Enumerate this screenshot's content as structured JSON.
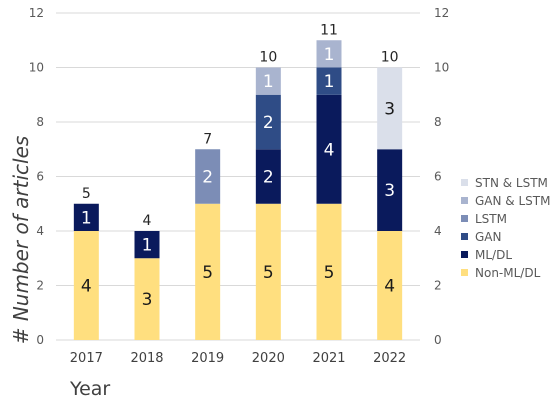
{
  "chart_data": {
    "type": "bar",
    "stacked": true,
    "xlabel": "Year",
    "ylabel": "# Number of articles",
    "ylim": [
      0,
      12
    ],
    "yticks": [
      0,
      2,
      4,
      6,
      8,
      10,
      12
    ],
    "secondary_y_axis": true,
    "grid": true,
    "legend_position": "right",
    "categories": [
      "2017",
      "2018",
      "2019",
      "2020",
      "2021",
      "2022"
    ],
    "totals": [
      5,
      4,
      7,
      10,
      11,
      10
    ],
    "series": [
      {
        "name": "Non-ML/DL",
        "color": "#FFDF7F",
        "values": [
          4,
          3,
          5,
          5,
          5,
          4
        ]
      },
      {
        "name": "ML/DL",
        "color": "#0A1A5C",
        "values": [
          1,
          1,
          0,
          2,
          4,
          3
        ]
      },
      {
        "name": "GAN",
        "color": "#2F4C86",
        "values": [
          0,
          0,
          0,
          2,
          1,
          0
        ]
      },
      {
        "name": "LSTM",
        "color": "#7C8DB6",
        "values": [
          0,
          0,
          2,
          0,
          0,
          0
        ]
      },
      {
        "name": "GAN & LSTM",
        "color": "#A9B4CF",
        "values": [
          0,
          0,
          0,
          1,
          1,
          0
        ]
      },
      {
        "name": "STN & LSTM",
        "color": "#DADFEA",
        "values": [
          0,
          0,
          0,
          0,
          0,
          3
        ]
      }
    ]
  }
}
